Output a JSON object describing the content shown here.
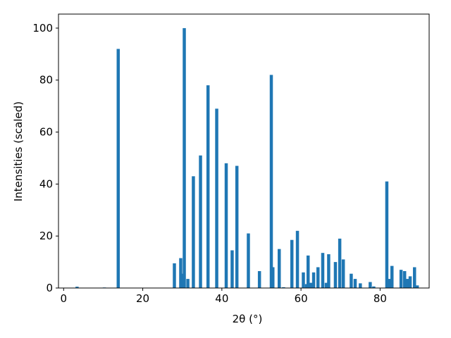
{
  "chart_data": {
    "type": "bar",
    "xlabel": "2θ (°)",
    "ylabel": "Intensities (scaled)",
    "color": "#1f77b4",
    "x": [
      3.4,
      10.3,
      13.8,
      28.0,
      29.6,
      30.1,
      30.5,
      31.4,
      32.8,
      34.6,
      36.5,
      38.7,
      41.1,
      42.6,
      43.8,
      46.7,
      49.5,
      52.5,
      52.9,
      54.5,
      55.6,
      57.7,
      59.1,
      60.6,
      61.4,
      61.8,
      62.5,
      63.2,
      64.3,
      65.5,
      66.4,
      67.0,
      68.7,
      69.8,
      70.7,
      72.7,
      73.7,
      75.0,
      77.5,
      78.4,
      81.7,
      82.3,
      83.0,
      85.3,
      86.2,
      86.9,
      87.6,
      88.7,
      89.4
    ],
    "values": [
      0.5,
      0.2,
      92,
      9.5,
      11.5,
      5.5,
      100,
      3.5,
      43,
      51,
      78,
      69,
      48,
      14.5,
      47,
      21,
      6.5,
      82,
      8,
      15,
      0.3,
      18.5,
      22,
      6,
      1.5,
      12.5,
      2,
      6,
      8,
      13.5,
      2,
      13,
      10,
      19,
      11,
      5.5,
      3.5,
      1.8,
      2.3,
      0.6,
      41,
      3.5,
      8.5,
      7,
      6.5,
      3.5,
      4.5,
      8,
      1
    ],
    "xlim": [
      -1.3,
      92.4
    ],
    "ylim": [
      0,
      105.4
    ],
    "xticks": [
      0,
      20,
      40,
      60,
      80
    ],
    "yticks": [
      0,
      20,
      40,
      60,
      80,
      100
    ]
  }
}
